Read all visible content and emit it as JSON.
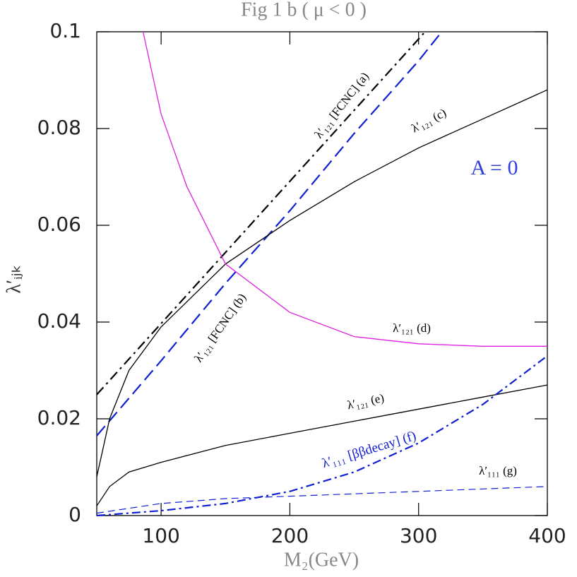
{
  "chart_data": {
    "type": "line",
    "title": "Fig 1 b ( μ < 0 )",
    "x_label": "M₂(GeV)",
    "y_label": "λ′ᵢⱼₖ",
    "xlim": [
      50,
      400
    ],
    "xticks": [
      100,
      200,
      300,
      400
    ],
    "ylim": [
      0,
      0.1
    ],
    "yticks": [
      0,
      0.02,
      0.04,
      0.06,
      0.08,
      0.1
    ],
    "series": [
      {
        "color": "#000000",
        "dash": "14 6 3 6",
        "width": 2.2,
        "x": [
          50,
          100,
          150,
          200,
          250,
          300,
          305
        ],
        "values": [
          0.025,
          0.0397,
          0.0544,
          0.0691,
          0.0838,
          0.0985,
          0.1
        ]
      },
      {
        "color": "#1020d0",
        "dash": "18 8",
        "width": 2.2,
        "x": [
          50,
          100,
          150,
          200,
          250,
          300,
          318
        ],
        "values": [
          0.0165,
          0.032,
          0.048,
          0.063,
          0.079,
          0.094,
          0.1
        ]
      },
      {
        "color": "#000000",
        "dash": "none",
        "width": 1.3,
        "x": [
          50,
          55,
          60,
          75,
          100,
          150,
          200,
          250,
          300,
          350,
          400
        ],
        "values": [
          0.008,
          0.014,
          0.02,
          0.03,
          0.039,
          0.052,
          0.061,
          0.069,
          0.076,
          0.082,
          0.088
        ]
      },
      {
        "color": "#e020e0",
        "dash": "none",
        "width": 1.3,
        "x": [
          86,
          100,
          120,
          150,
          200,
          250,
          300,
          350,
          400
        ],
        "values": [
          0.1,
          0.083,
          0.068,
          0.052,
          0.042,
          0.037,
          0.0355,
          0.035,
          0.035
        ]
      },
      {
        "color": "#000000",
        "dash": "none",
        "width": 1.3,
        "x": [
          50,
          60,
          75,
          100,
          150,
          200,
          250,
          300,
          350,
          400
        ],
        "values": [
          0.002,
          0.006,
          0.009,
          0.011,
          0.0145,
          0.017,
          0.0195,
          0.022,
          0.0245,
          0.027
        ]
      },
      {
        "color": "#1020d0",
        "dash": "12 5 3 5",
        "width": 2.2,
        "x": [
          50,
          100,
          150,
          200,
          250,
          300,
          350,
          400
        ],
        "values": [
          0,
          0.001,
          0.0025,
          0.005,
          0.009,
          0.015,
          0.023,
          0.033
        ]
      },
      {
        "color": "#1020d0",
        "dash": "10 6",
        "width": 1.2,
        "x": [
          50,
          100,
          150,
          200,
          250,
          300,
          350,
          400
        ],
        "values": [
          0.0005,
          0.0025,
          0.0035,
          0.004,
          0.0045,
          0.005,
          0.0055,
          0.006
        ]
      }
    ],
    "annotations": [
      {
        "text": "λ′₁₂₁ [FCNC] (a)",
        "color": "#000000"
      },
      {
        "text": "λ′₁₂₁ (c)",
        "color": "#000000"
      },
      {
        "text": "A = 0",
        "color": "#3040e0"
      },
      {
        "text": "λ′₁₂₁ [FCNC] (b)",
        "color": "#000000"
      },
      {
        "text": "λ′₁₂₁ (d)",
        "color": "#000000"
      },
      {
        "text": "λ′₁₂₁ (e)",
        "color": "#000000"
      },
      {
        "text": "λ′₁₁₁ [ββdecay]  (f)",
        "color": "#1020d0"
      },
      {
        "text": "λ′₁₁₁ (g)",
        "color": "#000000"
      }
    ]
  }
}
